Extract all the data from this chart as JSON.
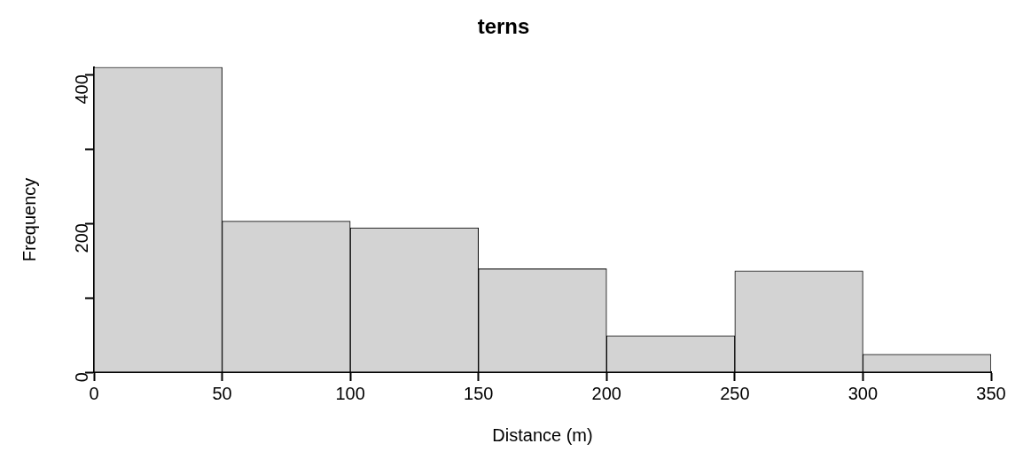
{
  "chart_data": {
    "type": "histogram",
    "title": "terns",
    "xlabel": "Distance (m)",
    "ylabel": "Frequency",
    "bins": [
      0,
      50,
      100,
      150,
      200,
      250,
      300,
      350
    ],
    "values": [
      410,
      203,
      194,
      139,
      49,
      136,
      24
    ],
    "color": "#d3d3d3",
    "xlim": [
      0,
      350
    ],
    "xticks": [
      0,
      50,
      100,
      150,
      200,
      250,
      300,
      350
    ],
    "ylim": [
      0,
      410
    ],
    "yticks": [
      0,
      {
        "value": 100,
        "label": null
      },
      200,
      {
        "value": 300,
        "label": null
      },
      400
    ],
    "grid": false
  }
}
